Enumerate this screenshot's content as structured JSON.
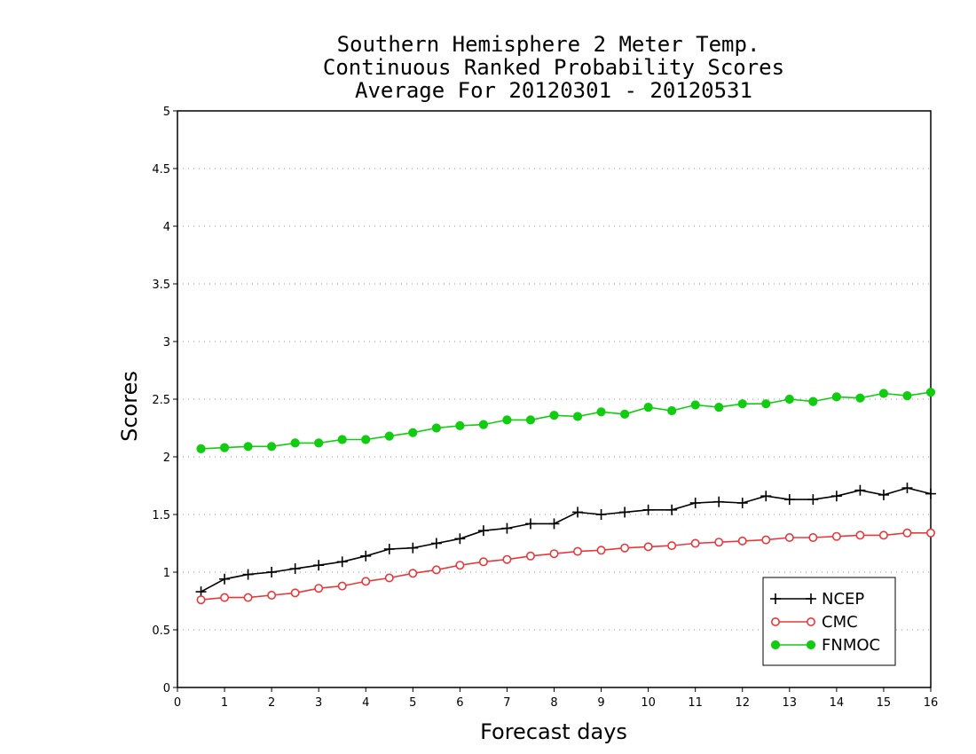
{
  "chart_data": {
    "type": "line",
    "title": [
      "Southern Hemisphere 2 Meter Temp.",
      "Continuous Ranked Probability Scores",
      "Average For 20120301 - 20120531"
    ],
    "xlabel": "Forecast days",
    "ylabel": "Scores",
    "xlim": [
      0,
      16
    ],
    "ylim": [
      0,
      5
    ],
    "xticks": [
      "0",
      "1",
      "2",
      "3",
      "4",
      "5",
      "6",
      "7",
      "8",
      "9",
      "10",
      "11",
      "12",
      "13",
      "14",
      "15",
      "16"
    ],
    "yticks": [
      "0",
      "0.5",
      "1",
      "1.5",
      "2",
      "2.5",
      "3",
      "3.5",
      "4",
      "4.5",
      "5"
    ],
    "grid": "horizontal dotted",
    "legend_position": "bottom-right",
    "x": [
      0.5,
      1,
      1.5,
      2,
      2.5,
      3,
      3.5,
      4,
      4.5,
      5,
      5.5,
      6,
      6.5,
      7,
      7.5,
      8,
      8.5,
      9,
      9.5,
      10,
      10.5,
      11,
      11.5,
      12,
      12.5,
      13,
      13.5,
      14,
      14.5,
      15,
      15.5,
      16
    ],
    "series": [
      {
        "name": "NCEP",
        "color": "#000000",
        "marker": "plus",
        "values": [
          0.83,
          0.94,
          0.98,
          1.0,
          1.03,
          1.06,
          1.09,
          1.14,
          1.2,
          1.21,
          1.25,
          1.29,
          1.36,
          1.38,
          1.42,
          1.42,
          1.52,
          1.5,
          1.52,
          1.54,
          1.54,
          1.6,
          1.61,
          1.6,
          1.66,
          1.63,
          1.63,
          1.66,
          1.71,
          1.67,
          1.73,
          1.68
        ]
      },
      {
        "name": "CMC",
        "color": "#e8383b",
        "marker": "open-circle",
        "values": [
          0.76,
          0.78,
          0.78,
          0.8,
          0.82,
          0.86,
          0.88,
          0.92,
          0.95,
          0.99,
          1.02,
          1.06,
          1.09,
          1.11,
          1.14,
          1.16,
          1.18,
          1.19,
          1.21,
          1.22,
          1.23,
          1.25,
          1.26,
          1.27,
          1.28,
          1.3,
          1.3,
          1.31,
          1.32,
          1.32,
          1.34,
          1.34
        ]
      },
      {
        "name": "FNMOC",
        "color": "#11cc11",
        "marker": "filled-circle",
        "values": [
          2.07,
          2.08,
          2.09,
          2.09,
          2.12,
          2.12,
          2.15,
          2.15,
          2.18,
          2.21,
          2.25,
          2.27,
          2.28,
          2.32,
          2.32,
          2.36,
          2.35,
          2.39,
          2.37,
          2.43,
          2.4,
          2.45,
          2.43,
          2.46,
          2.46,
          2.5,
          2.48,
          2.52,
          2.51,
          2.55,
          2.53,
          2.56
        ]
      }
    ]
  }
}
